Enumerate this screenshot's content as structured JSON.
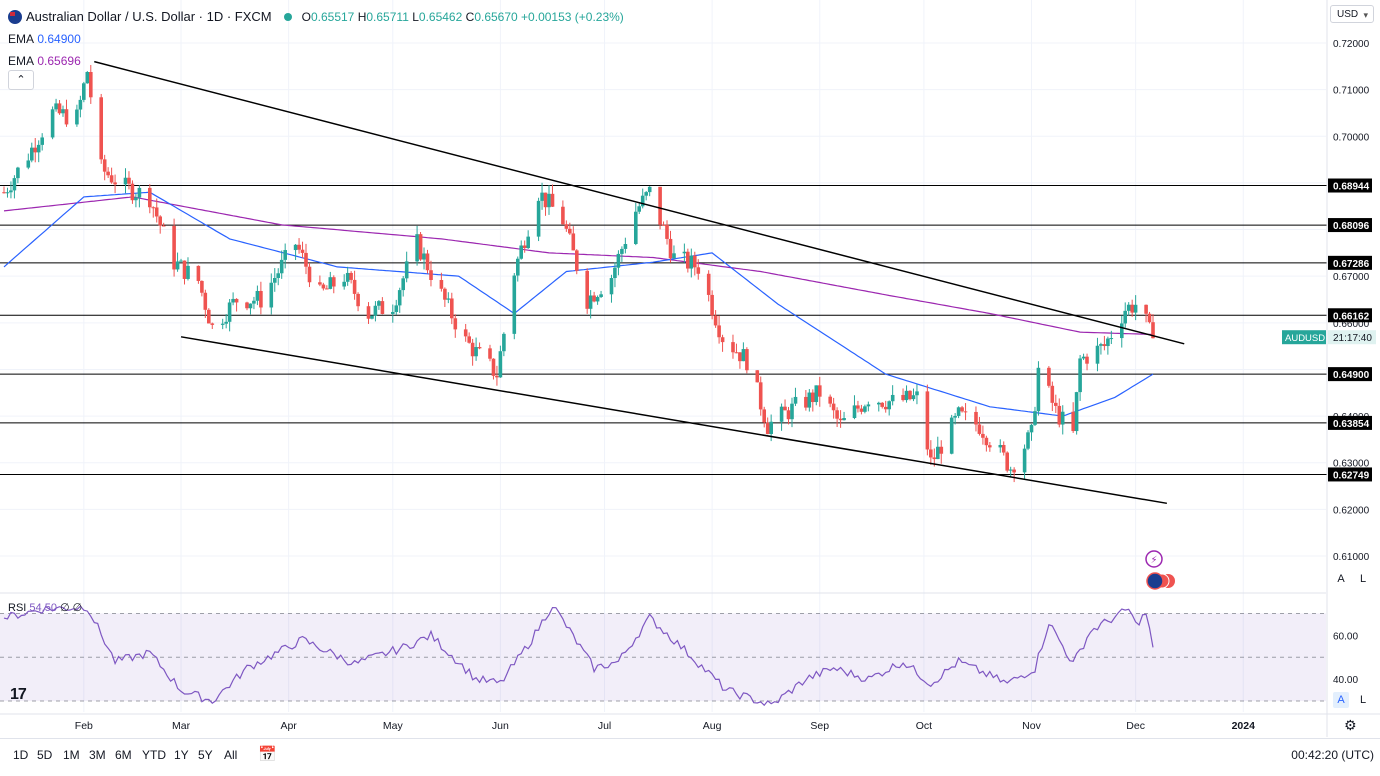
{
  "header": {
    "title": "Australian Dollar / U.S. Dollar · 1D · FXCM",
    "open_label": "O",
    "open": "0.65517",
    "high_label": "H",
    "high": "0.65711",
    "low_label": "L",
    "low": "0.65462",
    "close_label": "C",
    "close": "0.65670",
    "change": "+0.00153 (+0.23%)",
    "ema1_label": "EMA",
    "ema1_value": "0.64900",
    "ema2_label": "EMA",
    "ema2_value": "0.65696",
    "currency_button": "USD"
  },
  "symbol_tag": {
    "symbol": "AUDUSD",
    "countdown": "21:17:40"
  },
  "rsi": {
    "label": "RSI",
    "value": "54.50",
    "extra": "∅ ∅"
  },
  "time_axis": [
    "Feb",
    "Mar",
    "Apr",
    "May",
    "Jun",
    "Jul",
    "Aug",
    "Sep",
    "Oct",
    "Nov",
    "Dec",
    "2024"
  ],
  "price_axis": [
    "0.72000",
    "0.71000",
    "0.70000",
    "0.67000",
    "0.66000",
    "0.64000",
    "0.63000",
    "0.62000",
    "0.61000"
  ],
  "rsi_axis": [
    "60.00",
    "40.00"
  ],
  "axis_buttons": {
    "auto": "A",
    "log": "L"
  },
  "timeframes": [
    "1D",
    "5D",
    "1M",
    "3M",
    "6M",
    "YTD",
    "1Y",
    "5Y",
    "All"
  ],
  "clock": "00:42:20 (UTC)",
  "logo": "17",
  "colors": {
    "up": "#26a69a",
    "down": "#ef5350",
    "ema50": "#2962ff",
    "ema200": "#9c27b0",
    "rsi": "#7e57c2",
    "level": "#000000",
    "trend": "#000000"
  },
  "chart_data": {
    "type": "candlestick",
    "title": "Australian Dollar / U.S. Dollar · 1D · FXCM",
    "ylim": [
      0.6025,
      0.7275
    ],
    "horizontal_levels": [
      0.68944,
      0.68096,
      0.67286,
      0.66162,
      0.649,
      0.63854,
      0.62749
    ],
    "trend_lines": [
      {
        "name": "upper",
        "start": [
          "2023-02-04",
          0.716
        ],
        "end": [
          "2023-12-15",
          0.6555
        ]
      },
      {
        "name": "lower",
        "start": [
          "2023-03-01",
          0.657
        ],
        "end": [
          "2023-12-10",
          0.6213
        ]
      }
    ],
    "anchors": [
      [
        "2023-01-09",
        0.688
      ],
      [
        "2023-01-16",
        0.696
      ],
      [
        "2023-01-23",
        0.705
      ],
      [
        "2023-01-30",
        0.704
      ],
      [
        "2023-02-02",
        0.714
      ],
      [
        "2023-02-06",
        0.693
      ],
      [
        "2023-02-13",
        0.689
      ],
      [
        "2023-02-20",
        0.687
      ],
      [
        "2023-02-27",
        0.673
      ],
      [
        "2023-03-06",
        0.669
      ],
      [
        "2023-03-10",
        0.659
      ],
      [
        "2023-03-17",
        0.665
      ],
      [
        "2023-03-24",
        0.665
      ],
      [
        "2023-04-03",
        0.677
      ],
      [
        "2023-04-10",
        0.666
      ],
      [
        "2023-04-17",
        0.67
      ],
      [
        "2023-04-24",
        0.662
      ],
      [
        "2023-05-01",
        0.664
      ],
      [
        "2023-05-08",
        0.677
      ],
      [
        "2023-05-15",
        0.666
      ],
      [
        "2023-05-22",
        0.656
      ],
      [
        "2023-05-31",
        0.649
      ],
      [
        "2023-06-05",
        0.671
      ],
      [
        "2023-06-12",
        0.688
      ],
      [
        "2023-06-19",
        0.682
      ],
      [
        "2023-06-26",
        0.665
      ],
      [
        "2023-07-03",
        0.67
      ],
      [
        "2023-07-10",
        0.684
      ],
      [
        "2023-07-14",
        0.688
      ],
      [
        "2023-07-21",
        0.674
      ],
      [
        "2023-07-28",
        0.672
      ],
      [
        "2023-08-04",
        0.657
      ],
      [
        "2023-08-11",
        0.652
      ],
      [
        "2023-08-17",
        0.638
      ],
      [
        "2023-08-25",
        0.642
      ],
      [
        "2023-09-01",
        0.645
      ],
      [
        "2023-09-07",
        0.638
      ],
      [
        "2023-09-15",
        0.644
      ],
      [
        "2023-09-22",
        0.643
      ],
      [
        "2023-09-29",
        0.644
      ],
      [
        "2023-10-03",
        0.63
      ],
      [
        "2023-10-11",
        0.64
      ],
      [
        "2023-10-17",
        0.638
      ],
      [
        "2023-10-26",
        0.629
      ],
      [
        "2023-11-01",
        0.636
      ],
      [
        "2023-11-03",
        0.65
      ],
      [
        "2023-11-08",
        0.641
      ],
      [
        "2023-11-13",
        0.636
      ],
      [
        "2023-11-15",
        0.652
      ],
      [
        "2023-11-22",
        0.655
      ],
      [
        "2023-11-28",
        0.663
      ],
      [
        "2023-12-01",
        0.664
      ],
      [
        "2023-12-04",
        0.66
      ],
      [
        "2023-12-06",
        0.656
      ]
    ],
    "ema50_anchors": [
      [
        "2023-01-09",
        0.672
      ],
      [
        "2023-02-01",
        0.687
      ],
      [
        "2023-02-20",
        0.688
      ],
      [
        "2023-03-15",
        0.678
      ],
      [
        "2023-04-15",
        0.672
      ],
      [
        "2023-05-20",
        0.67
      ],
      [
        "2023-06-05",
        0.662
      ],
      [
        "2023-06-20",
        0.671
      ],
      [
        "2023-07-15",
        0.673
      ],
      [
        "2023-08-01",
        0.675
      ],
      [
        "2023-08-20",
        0.664
      ],
      [
        "2023-09-20",
        0.649
      ],
      [
        "2023-10-20",
        0.642
      ],
      [
        "2023-11-10",
        0.64
      ],
      [
        "2023-11-25",
        0.644
      ],
      [
        "2023-12-06",
        0.649
      ]
    ],
    "ema200_anchors": [
      [
        "2023-01-09",
        0.684
      ],
      [
        "2023-02-15",
        0.687
      ],
      [
        "2023-03-30",
        0.681
      ],
      [
        "2023-05-15",
        0.678
      ],
      [
        "2023-06-15",
        0.675
      ],
      [
        "2023-07-15",
        0.674
      ],
      [
        "2023-08-15",
        0.671
      ],
      [
        "2023-09-20",
        0.666
      ],
      [
        "2023-10-20",
        0.662
      ],
      [
        "2023-11-15",
        0.658
      ],
      [
        "2023-12-06",
        0.6575
      ]
    ],
    "last_close": 0.6567,
    "rsi": {
      "ylim": [
        25,
        78
      ],
      "bands": [
        70,
        50,
        30
      ],
      "anchors": [
        [
          "2023-01-09",
          68
        ],
        [
          "2023-01-20",
          72
        ],
        [
          "2023-02-02",
          73
        ],
        [
          "2023-02-10",
          48
        ],
        [
          "2023-02-20",
          52
        ],
        [
          "2023-03-01",
          35
        ],
        [
          "2023-03-10",
          30
        ],
        [
          "2023-03-20",
          45
        ],
        [
          "2023-04-05",
          58
        ],
        [
          "2023-04-20",
          47
        ],
        [
          "2023-05-05",
          55
        ],
        [
          "2023-05-12",
          60
        ],
        [
          "2023-05-25",
          40
        ],
        [
          "2023-06-01",
          38
        ],
        [
          "2023-06-10",
          58
        ],
        [
          "2023-06-16",
          74
        ],
        [
          "2023-06-28",
          45
        ],
        [
          "2023-07-05",
          48
        ],
        [
          "2023-07-14",
          68
        ],
        [
          "2023-07-25",
          52
        ],
        [
          "2023-08-05",
          35
        ],
        [
          "2023-08-18",
          28
        ],
        [
          "2023-08-28",
          40
        ],
        [
          "2023-09-05",
          45
        ],
        [
          "2023-09-15",
          40
        ],
        [
          "2023-09-25",
          48
        ],
        [
          "2023-10-03",
          38
        ],
        [
          "2023-10-11",
          48
        ],
        [
          "2023-10-25",
          38
        ],
        [
          "2023-11-02",
          45
        ],
        [
          "2023-11-06",
          66
        ],
        [
          "2023-11-13",
          47
        ],
        [
          "2023-11-18",
          62
        ],
        [
          "2023-11-29",
          72
        ],
        [
          "2023-12-01",
          65
        ],
        [
          "2023-12-04",
          70
        ],
        [
          "2023-12-06",
          54.5
        ]
      ]
    }
  }
}
